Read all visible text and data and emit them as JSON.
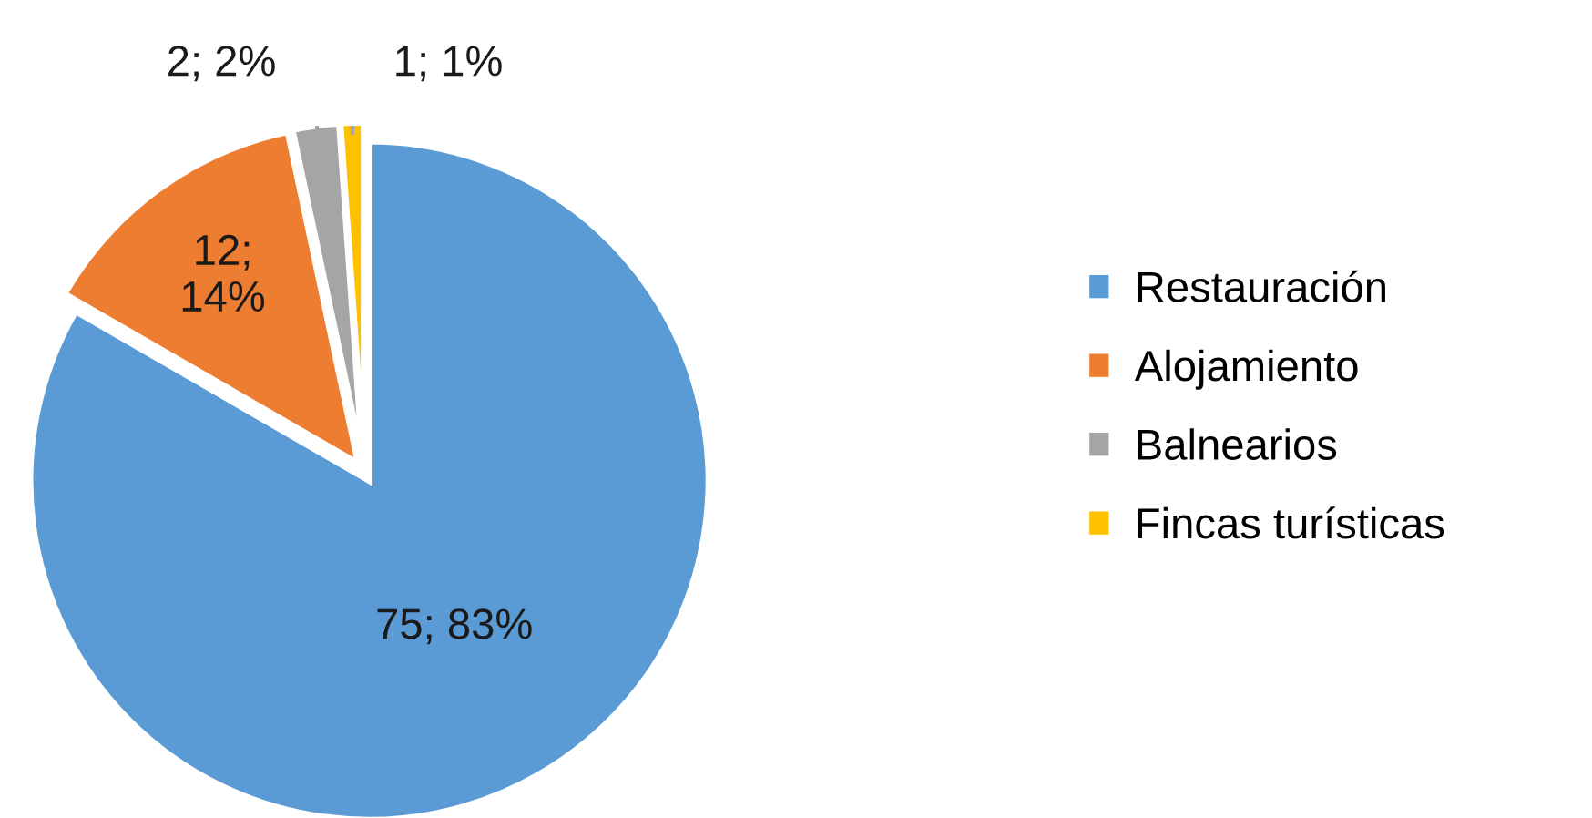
{
  "chart_data": {
    "type": "pie",
    "categories": [
      "Restauración",
      "Alojamiento",
      "Balnearios",
      "Fincas turísticas"
    ],
    "values": [
      75,
      12,
      2,
      1
    ],
    "colors": [
      "#5b9bd5",
      "#ed7d31",
      "#a5a5a5",
      "#ffc000"
    ],
    "value_labels": [
      "75; 83%",
      "12;\n14%",
      "2; 2%",
      "1; 1%"
    ],
    "legend": "right"
  }
}
